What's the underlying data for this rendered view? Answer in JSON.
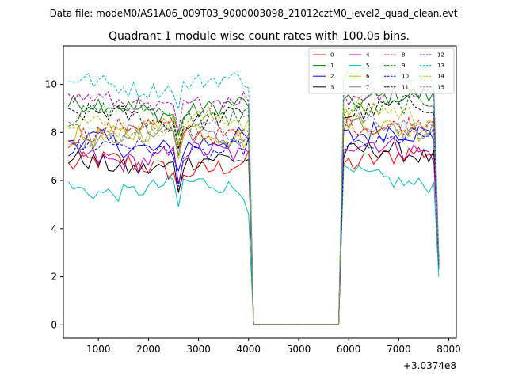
{
  "chart_data": {
    "type": "line",
    "suptitle": "Data file: modeM0/AS1A06_009T03_9000003098_21012cztM0_level2_quad_clean.evt",
    "title": "Quadrant 1 module wise count rates with 100.0s bins.",
    "xlabel": "",
    "ylabel": "",
    "x_offset_label": "+3.0374e8",
    "xlim": [
      300,
      8150
    ],
    "ylim": [
      -0.55,
      11.6
    ],
    "xticks": [
      1000,
      2000,
      3000,
      4000,
      5000,
      6000,
      7000,
      8000
    ],
    "yticks": [
      0,
      2,
      4,
      6,
      8,
      10
    ],
    "x_start": 400,
    "x_step": 100,
    "points_per_series": 75,
    "gap_range": [
      37,
      54
    ],
    "legend_position": "top-right",
    "series": [
      {
        "name": "0",
        "color": "#ff0000",
        "dash": "solid",
        "base": 6.6,
        "amp": 0.45,
        "edge": 2.6
      },
      {
        "name": "1",
        "color": "#008000",
        "dash": "solid",
        "base": 9.0,
        "amp": 0.4,
        "edge": 2.3
      },
      {
        "name": "2",
        "color": "#0000ff",
        "dash": "solid",
        "base": 7.5,
        "amp": 0.5,
        "edge": 2.5
      },
      {
        "name": "3",
        "color": "#000000",
        "dash": "solid",
        "base": 6.7,
        "amp": 0.4,
        "edge": 2.6
      },
      {
        "name": "4",
        "color": "#bf00bf",
        "dash": "solid",
        "base": 7.0,
        "amp": 0.45,
        "edge": 2.6
      },
      {
        "name": "5",
        "color": "#00bfbf",
        "dash": "solid",
        "base": 5.7,
        "amp": 0.35,
        "edge": 2.0
      },
      {
        "name": "6",
        "color": "#bfbf00",
        "dash": "solid",
        "base": 8.0,
        "amp": 0.5,
        "edge": 2.7
      },
      {
        "name": "7",
        "color": "#808080",
        "dash": "solid",
        "base": 7.9,
        "amp": 0.4,
        "edge": 2.5
      },
      {
        "name": "8",
        "color": "#ff0000",
        "dash": "dashed",
        "base": 8.1,
        "amp": 0.4,
        "edge": 2.6
      },
      {
        "name": "9",
        "color": "#008000",
        "dash": "dashed",
        "base": 8.8,
        "amp": 0.4,
        "edge": 2.7
      },
      {
        "name": "10",
        "color": "#0000ff",
        "dash": "dashed",
        "base": 7.3,
        "amp": 0.35,
        "edge": 2.5
      },
      {
        "name": "11",
        "color": "#000000",
        "dash": "dashed",
        "base": 8.6,
        "amp": 0.4,
        "edge": 2.7
      },
      {
        "name": "12",
        "color": "#bf00bf",
        "dash": "dashed",
        "base": 9.2,
        "amp": 0.4,
        "edge": 2.8
      },
      {
        "name": "13",
        "color": "#00bfbf",
        "dash": "dashed",
        "base": 10.0,
        "amp": 0.35,
        "edge": 2.9
      },
      {
        "name": "14",
        "color": "#bfbf00",
        "dash": "dashed",
        "base": 8.4,
        "amp": 0.45,
        "edge": 2.7
      },
      {
        "name": "15",
        "color": "#808080",
        "dash": "dashed",
        "base": 8.0,
        "amp": 0.4,
        "edge": 2.6
      }
    ]
  }
}
